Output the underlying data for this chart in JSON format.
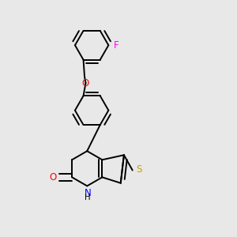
{
  "background_color": "#e8e8e8",
  "bond_color": "#000000",
  "S_color": "#c8a000",
  "N_color": "#0000ff",
  "O_color": "#ff0000",
  "F_color": "#ff00ff",
  "line_width": 1.4,
  "font_size": 8.5,
  "figsize": [
    3.0,
    3.0
  ],
  "dpi": 100,
  "xlim": [
    0.0,
    1.0
  ],
  "ylim": [
    0.0,
    1.0
  ]
}
